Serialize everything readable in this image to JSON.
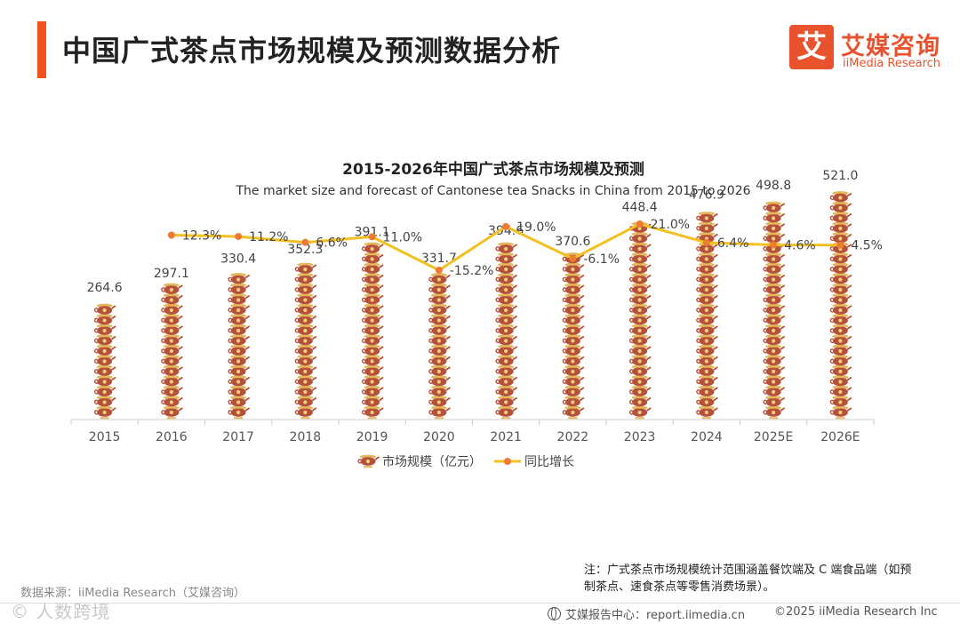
{
  "header": {
    "title": "中国广式茶点市场规模及预测数据分析",
    "logo_mark": "艾",
    "logo_cn": "艾媒咨询",
    "logo_en": "iiMedia Research",
    "accent_color": "#f0521e"
  },
  "chart_data": {
    "type": "bar",
    "title": "2015-2026年中国广式茶点市场规模及预测",
    "subtitle": "The market size and forecast of Cantonese tea Snacks in China from 2015 to 2026",
    "categories": [
      "2015",
      "2016",
      "2017",
      "2018",
      "2019",
      "2020",
      "2021",
      "2022",
      "2023",
      "2024",
      "2025E",
      "2026E"
    ],
    "series": [
      {
        "name": "市场规模（亿元）",
        "type": "bar",
        "values": [
          264.6,
          297.1,
          330.4,
          352.3,
          391.1,
          331.7,
          394.6,
          370.6,
          448.4,
          476.9,
          498.8,
          521.0
        ],
        "labels": [
          "264.6",
          "297.1",
          "330.4",
          "352.3",
          "391.1",
          "331.7",
          "394.6",
          "370.6",
          "448.4",
          "476.9",
          "498.8",
          "521.0"
        ],
        "color": "#b5503a"
      },
      {
        "name": "同比增长",
        "type": "line",
        "values": [
          null,
          12.3,
          11.2,
          6.6,
          11.0,
          -15.2,
          19.0,
          -6.1,
          21.0,
          6.4,
          4.6,
          4.5
        ],
        "labels": [
          "",
          "12.3%",
          "11.2%",
          "6.6%",
          "11.0%",
          "-15.2%",
          "19.0%",
          "-6.1%",
          "21.0%",
          "6.4%",
          "4.6%",
          "4.5%"
        ],
        "color": "#f3c021",
        "marker_color": "#ee7b32"
      }
    ],
    "bar_ylim": [
      0,
      600
    ],
    "line_ylim": [
      -20,
      25
    ]
  },
  "footer": {
    "note": "注：广式茶点市场规模统计范围涵盖餐饮端及 C 端食品端（如预制茶点、速食茶点等零售消费场景）。",
    "source": "数据来源：iiMedia Research（艾媒咨询）",
    "watermark": "©  人数跨境",
    "center": "艾媒报告中心：report.iimedia.cn",
    "copyright": "©2025  iiMedia Research  Inc"
  }
}
